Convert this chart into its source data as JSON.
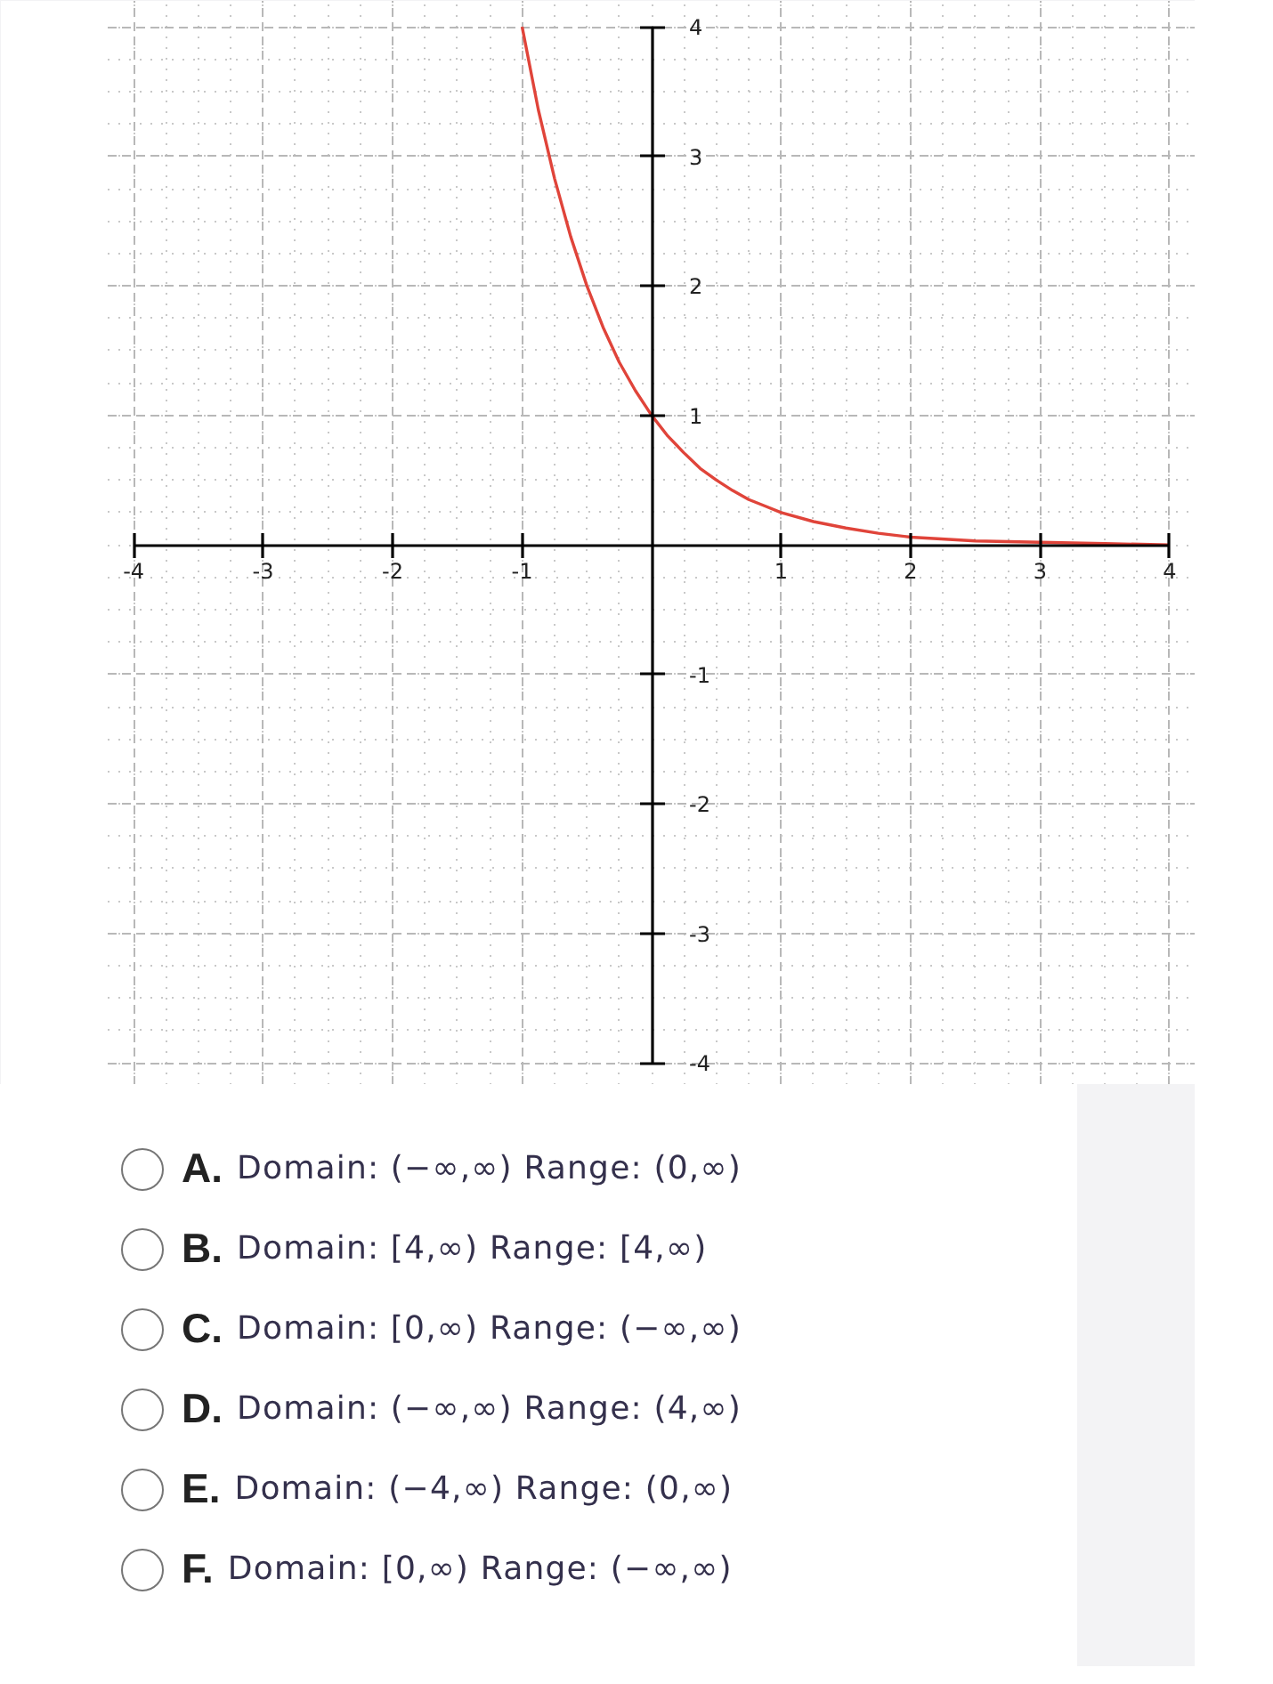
{
  "chart_data": {
    "type": "line",
    "x": [
      -1,
      -0.875,
      -0.75,
      -0.625,
      -0.5,
      -0.375,
      -0.25,
      -0.125,
      0,
      0.125,
      0.25,
      0.375,
      0.5,
      0.625,
      0.75,
      0.875,
      1,
      1.25,
      1.5,
      1.75,
      2,
      2.5,
      3,
      3.5,
      4
    ],
    "values": [
      4,
      3.36,
      2.83,
      2.38,
      2,
      1.68,
      1.41,
      1.19,
      1,
      0.84,
      0.71,
      0.59,
      0.5,
      0.42,
      0.35,
      0.3,
      0.25,
      0.18,
      0.13,
      0.09,
      0.06,
      0.03,
      0.02,
      0.01,
      0
    ],
    "color": "#e0443a",
    "xlim": [
      -4.2,
      4.2
    ],
    "ylim": [
      -4.17,
      4.2
    ],
    "xticks": [
      -4,
      -3,
      -2,
      -1,
      1,
      2,
      3,
      4
    ],
    "yticks": [
      -4,
      -3,
      -2,
      -1,
      1,
      2,
      3,
      4
    ],
    "grid": true,
    "annotations": [
      "A. Domain: (−∞,∞) Range: (0,∞)",
      "B. Domain: [4,∞) Range: [4,∞)",
      "C. Domain: [0,∞) Range: (−∞,∞)",
      "D. Domain: (−∞,∞) Range: (4,∞)",
      "E. Domain: (−4,∞) Range: (0,∞)",
      "F. Domain: [0,∞) Range: (−∞,∞)"
    ]
  }
}
